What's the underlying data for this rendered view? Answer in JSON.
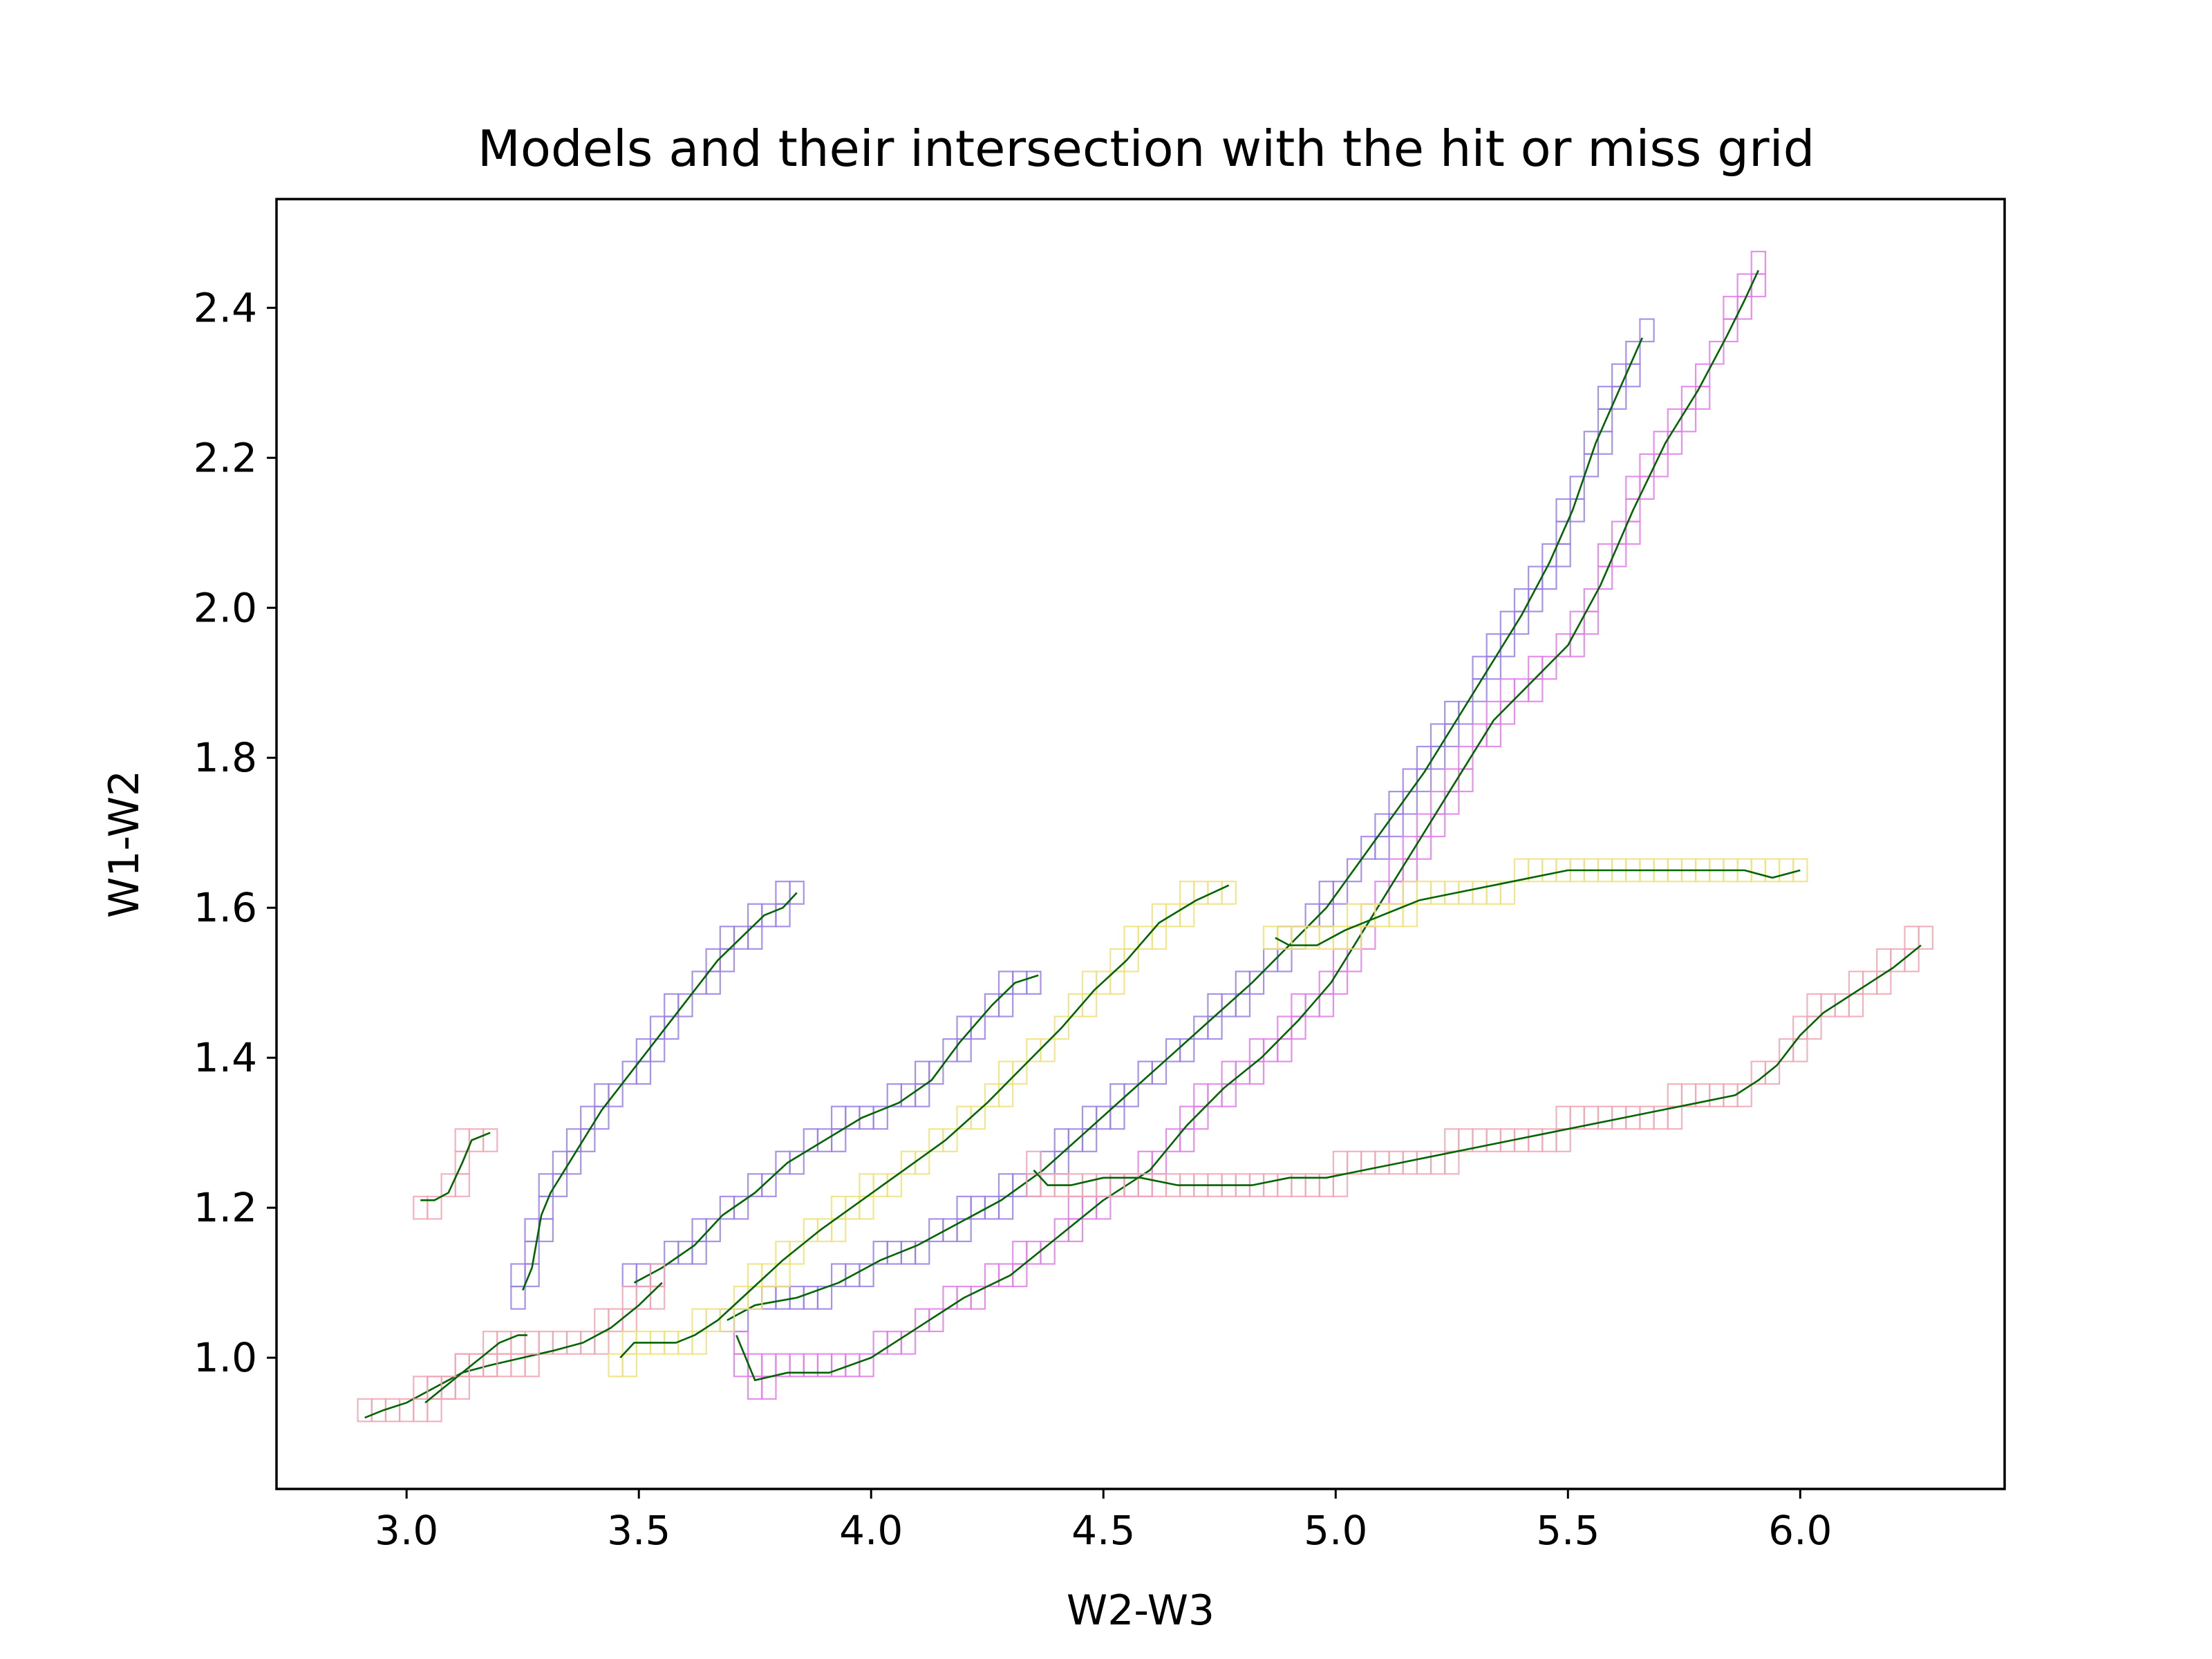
{
  "chart_data": {
    "type": "line",
    "title": "Models and their intersection with the hit or miss grid",
    "xlabel": "W2-W3",
    "ylabel": "W1-W2",
    "xlim": [
      2.72,
      6.44
    ],
    "ylim": [
      0.825,
      2.545
    ],
    "x_ticks": [
      "3.0",
      "3.5",
      "4.0",
      "4.5",
      "5.0",
      "5.5",
      "6.0"
    ],
    "y_ticks": [
      "1.0",
      "1.2",
      "1.4",
      "1.6",
      "1.8",
      "2.0",
      "2.2",
      "2.4"
    ],
    "grid": false,
    "legend": "none",
    "line_color": "#006400",
    "grid_cell": 0.03,
    "series": [
      {
        "box_color": "#9a7fe6",
        "x": [
          3.25,
          3.27,
          3.29,
          3.31,
          3.34,
          3.38,
          3.42,
          3.47,
          3.52,
          3.57,
          3.62,
          3.67,
          3.72,
          3.77,
          3.81,
          3.84
        ],
        "y": [
          1.09,
          1.12,
          1.19,
          1.22,
          1.25,
          1.29,
          1.33,
          1.37,
          1.41,
          1.45,
          1.49,
          1.53,
          1.56,
          1.59,
          1.6,
          1.62
        ]
      },
      {
        "box_color": "#9a7fe6",
        "x": [
          3.49,
          3.55,
          3.62,
          3.68,
          3.75,
          3.82,
          3.9,
          3.98,
          4.06,
          4.13,
          4.19,
          4.26,
          4.31,
          4.36
        ],
        "y": [
          1.1,
          1.12,
          1.15,
          1.19,
          1.22,
          1.26,
          1.29,
          1.32,
          1.34,
          1.37,
          1.42,
          1.47,
          1.5,
          1.51
        ]
      },
      {
        "box_color": "#9a7fe6",
        "x": [
          3.69,
          3.75,
          3.84,
          3.93,
          4.02,
          4.1,
          4.19,
          4.28,
          4.37,
          4.46,
          4.55,
          4.64,
          4.73,
          4.82,
          4.9,
          4.98,
          5.05,
          5.12,
          5.19,
          5.26,
          5.33,
          5.4,
          5.46,
          5.51,
          5.56,
          5.61,
          5.66
        ],
        "y": [
          1.05,
          1.07,
          1.08,
          1.1,
          1.13,
          1.15,
          1.18,
          1.21,
          1.25,
          1.3,
          1.35,
          1.4,
          1.45,
          1.5,
          1.55,
          1.6,
          1.66,
          1.72,
          1.78,
          1.85,
          1.92,
          1.99,
          2.06,
          2.13,
          2.22,
          2.29,
          2.36
        ]
      },
      {
        "box_color": "#e07ee8",
        "x": [
          3.71,
          3.73,
          3.75,
          3.82,
          3.91,
          4.0,
          4.1,
          4.2,
          4.3,
          4.4,
          4.5,
          4.6,
          4.68,
          4.76,
          4.84,
          4.92,
          4.99,
          5.06,
          5.13,
          5.2,
          5.27,
          5.34,
          5.42,
          5.5,
          5.57,
          5.64,
          5.71,
          5.78,
          5.84,
          5.88,
          5.91
        ],
        "y": [
          1.03,
          1.0,
          0.97,
          0.98,
          0.98,
          1.0,
          1.04,
          1.08,
          1.11,
          1.16,
          1.21,
          1.25,
          1.31,
          1.36,
          1.4,
          1.45,
          1.5,
          1.57,
          1.64,
          1.71,
          1.78,
          1.85,
          1.9,
          1.95,
          2.03,
          2.13,
          2.22,
          2.29,
          2.36,
          2.41,
          2.45
        ]
      },
      {
        "box_color": "#f0a6b4",
        "x": [
          2.91,
          2.95,
          3.0,
          3.06,
          3.12,
          3.18,
          3.25,
          3.32,
          3.38,
          3.44,
          3.5,
          3.55
        ],
        "y": [
          0.92,
          0.93,
          0.94,
          0.96,
          0.98,
          0.99,
          1.0,
          1.01,
          1.02,
          1.04,
          1.07,
          1.1
        ]
      },
      {
        "box_color": "#f0a6b4",
        "x": [
          3.04,
          3.08,
          3.12,
          3.16,
          3.2,
          3.24,
          3.26
        ],
        "y": [
          0.94,
          0.96,
          0.98,
          1.0,
          1.02,
          1.03,
          1.03
        ]
      },
      {
        "box_color": "#f0a6b4",
        "x": [
          4.35,
          4.38,
          4.43,
          4.5,
          4.58,
          4.66,
          4.74,
          4.82,
          4.9,
          4.98,
          5.06,
          5.14,
          5.22,
          5.3,
          5.38,
          5.46,
          5.54,
          5.62,
          5.7,
          5.78,
          5.86,
          5.91,
          5.95,
          6.0,
          6.05,
          6.1,
          6.15,
          6.2,
          6.26
        ],
        "y": [
          1.25,
          1.23,
          1.23,
          1.24,
          1.24,
          1.23,
          1.23,
          1.23,
          1.24,
          1.24,
          1.25,
          1.26,
          1.27,
          1.28,
          1.29,
          1.3,
          1.31,
          1.32,
          1.33,
          1.34,
          1.35,
          1.37,
          1.39,
          1.43,
          1.46,
          1.48,
          1.5,
          1.52,
          1.55
        ]
      },
      {
        "box_color": "#f0a6b4",
        "x": [
          3.03,
          3.06,
          3.09,
          3.12,
          3.14,
          3.18
        ],
        "y": [
          1.21,
          1.21,
          1.22,
          1.26,
          1.29,
          1.3
        ]
      },
      {
        "box_color": "#eee27a",
        "x": [
          3.46,
          3.49,
          3.53,
          3.58,
          3.62,
          3.67,
          3.74,
          3.81,
          3.89,
          3.98,
          4.07,
          4.16,
          4.25,
          4.33,
          4.41,
          4.48,
          4.55,
          4.62,
          4.7,
          4.77
        ],
        "y": [
          1.0,
          1.02,
          1.02,
          1.02,
          1.03,
          1.05,
          1.09,
          1.13,
          1.17,
          1.21,
          1.25,
          1.29,
          1.34,
          1.39,
          1.44,
          1.49,
          1.53,
          1.58,
          1.61,
          1.63
        ]
      },
      {
        "box_color": "#eee27a",
        "x": [
          4.87,
          4.9,
          4.96,
          5.02,
          5.1,
          5.18,
          5.26,
          5.34,
          5.42,
          5.5,
          5.58,
          5.66,
          5.74,
          5.82,
          5.88,
          5.94,
          6.0
        ],
        "y": [
          1.56,
          1.55,
          1.55,
          1.57,
          1.59,
          1.61,
          1.62,
          1.63,
          1.64,
          1.65,
          1.65,
          1.65,
          1.65,
          1.65,
          1.65,
          1.64,
          1.65
        ]
      }
    ]
  }
}
